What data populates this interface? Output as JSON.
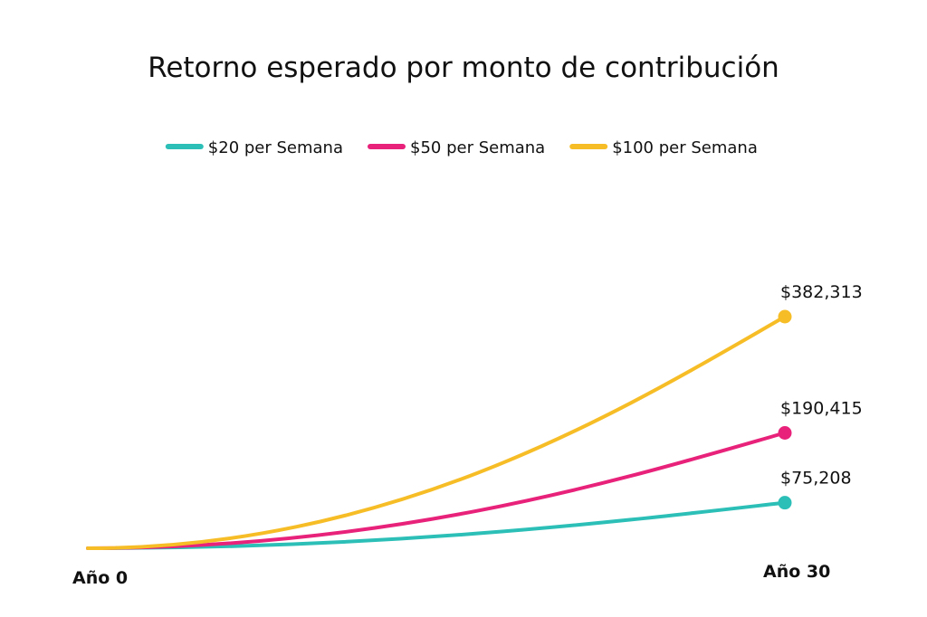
{
  "chart_data": {
    "type": "line",
    "title": "Retorno esperado por monto de contribución",
    "x": [
      0,
      30
    ],
    "x_tick_labels": [
      "Año 0",
      "Año 30"
    ],
    "y_range": [
      0,
      382313
    ],
    "grid": false,
    "legend_position": "top-center",
    "series": [
      {
        "name": "$20 per Semana",
        "color": "#2bbfb7",
        "start_value": 0,
        "end_value": 75208,
        "end_label": "$75,208"
      },
      {
        "name": "$50 per Semana",
        "color": "#e8217a",
        "start_value": 0,
        "end_value": 190415,
        "end_label": "$190,415"
      },
      {
        "name": "$100 per Semana",
        "color": "#f7bd27",
        "start_value": 0,
        "end_value": 382313,
        "end_label": "$382,313"
      }
    ]
  }
}
